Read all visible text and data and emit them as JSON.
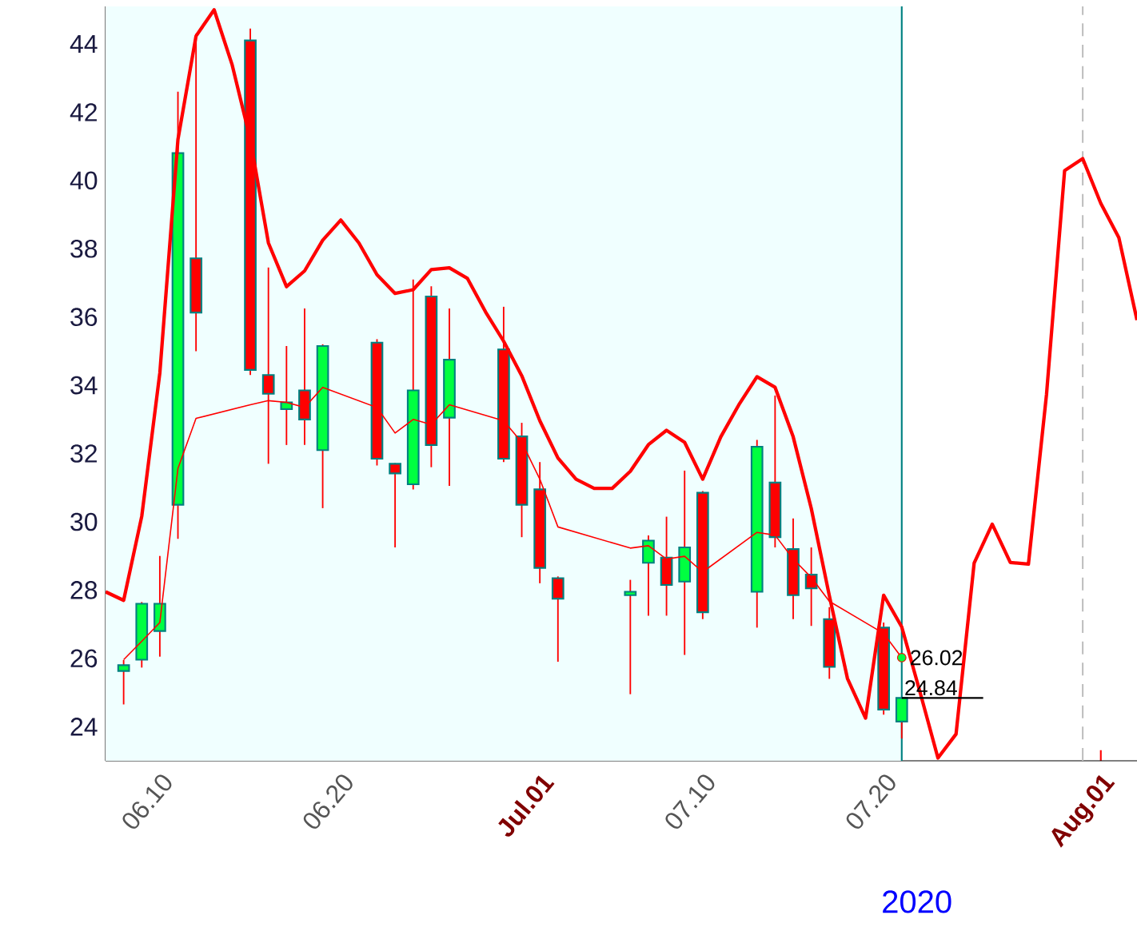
{
  "chart_data": {
    "type": "candlestick",
    "xlim": [
      "2020-06-07",
      "2020-08-03"
    ],
    "xticks": [
      {
        "value": "2020-06-10",
        "label": "06.10"
      },
      {
        "value": "2020-06-20",
        "label": "06.20"
      },
      {
        "value": "2020-07-01",
        "label": "Jul.01"
      },
      {
        "value": "2020-07-10",
        "label": "07.10"
      },
      {
        "value": "2020-07-20",
        "label": "07.20"
      },
      {
        "value": "2020-08-01",
        "label": "Aug.01"
      }
    ],
    "ylim": [
      23,
      45.1
    ],
    "yticks": [
      24,
      26,
      28,
      30,
      32,
      34,
      36,
      38,
      40,
      42,
      44
    ],
    "series": [
      {
        "x": [
          "2020-06-08",
          "2020-06-09",
          "2020-06-10",
          "2020-06-11",
          "2020-06-12",
          "2020-06-15",
          "2020-06-16",
          "2020-06-17",
          "2020-06-18",
          "2020-06-19",
          "2020-06-22",
          "2020-06-23",
          "2020-06-24",
          "2020-06-25",
          "2020-06-26",
          "2020-06-29",
          "2020-06-30",
          "2020-07-01",
          "2020-07-02",
          "2020-07-06",
          "2020-07-07",
          "2020-07-08",
          "2020-07-09",
          "2020-07-10",
          "2020-07-13",
          "2020-07-14",
          "2020-07-15",
          "2020-07-16",
          "2020-07-17",
          "2020-07-20",
          "2020-07-21"
        ],
        "ohlc": [
          [
            25.63,
            25.95,
            24.65,
            25.8
          ],
          [
            25.96,
            27.65,
            25.73,
            27.6
          ],
          [
            26.8,
            29.0,
            26.05,
            27.6
          ],
          [
            30.5,
            42.6,
            29.5,
            40.8
          ],
          [
            37.72,
            44.3,
            35.0,
            36.13
          ],
          [
            44.1,
            44.45,
            34.3,
            34.45
          ],
          [
            34.3,
            37.45,
            31.7,
            33.75
          ],
          [
            33.3,
            35.15,
            32.25,
            33.5
          ],
          [
            33.85,
            36.25,
            32.25,
            33.0
          ],
          [
            32.1,
            35.2,
            30.4,
            35.15
          ],
          [
            35.25,
            35.35,
            31.65,
            31.85
          ],
          [
            31.7,
            31.72,
            29.25,
            31.42
          ],
          [
            31.1,
            37.1,
            30.95,
            33.85
          ],
          [
            36.6,
            36.9,
            31.6,
            32.25
          ],
          [
            33.05,
            36.25,
            31.05,
            34.75
          ],
          [
            35.05,
            36.3,
            31.75,
            31.85
          ],
          [
            32.5,
            32.9,
            29.55,
            30.5
          ],
          [
            30.95,
            31.75,
            28.2,
            28.65
          ],
          [
            28.35,
            28.4,
            25.9,
            27.75
          ],
          [
            27.85,
            28.3,
            24.95,
            27.95
          ],
          [
            28.8,
            29.6,
            27.25,
            29.45
          ],
          [
            28.95,
            30.15,
            27.25,
            28.15
          ],
          [
            28.25,
            31.5,
            26.1,
            29.25
          ],
          [
            30.85,
            30.9,
            27.15,
            27.35
          ],
          [
            27.95,
            32.4,
            26.9,
            32.2
          ],
          [
            31.15,
            33.7,
            29.25,
            29.55
          ],
          [
            29.2,
            30.1,
            27.15,
            27.85
          ],
          [
            28.45,
            29.25,
            26.95,
            28.05
          ],
          [
            27.15,
            27.5,
            25.4,
            25.75
          ],
          [
            26.9,
            27.05,
            24.35,
            24.5
          ],
          [
            24.15,
            24.85,
            23.65,
            24.84
          ]
        ],
        "colors": [
          "#00ff40",
          "#00ff40",
          "#00ff40",
          "#00ff40",
          "#ff0000",
          "#ff0000",
          "#ff0000",
          "#00ff40",
          "#ff0000",
          "#00ff40",
          "#ff0000",
          "#ff0000",
          "#00ff40",
          "#ff0000",
          "#00ff40",
          "#ff0000",
          "#ff0000",
          "#ff0000",
          "#ff0000",
          "#00ff40",
          "#00ff40",
          "#ff0000",
          "#00ff40",
          "#ff0000",
          "#00ff40",
          "#ff0000",
          "#ff0000",
          "#ff0000",
          "#ff0000",
          "#ff0000",
          "#00ff40"
        ]
      },
      {
        "type": "line",
        "color": "#ff0000",
        "x": [
          "2020-06-07",
          "2020-06-08",
          "2020-06-09",
          "2020-06-10",
          "2020-06-11",
          "2020-06-12",
          "2020-06-13",
          "2020-06-14",
          "2020-06-15",
          "2020-06-16",
          "2020-06-17",
          "2020-06-18",
          "2020-06-19",
          "2020-06-20",
          "2020-06-21",
          "2020-06-22",
          "2020-06-23",
          "2020-06-24",
          "2020-06-25",
          "2020-06-26",
          "2020-06-27",
          "2020-06-28",
          "2020-06-29",
          "2020-06-30",
          "2020-07-01",
          "2020-07-02",
          "2020-07-03",
          "2020-07-04",
          "2020-07-05",
          "2020-07-06",
          "2020-07-07",
          "2020-07-08",
          "2020-07-09",
          "2020-07-10",
          "2020-07-11",
          "2020-07-12",
          "2020-07-13",
          "2020-07-14",
          "2020-07-15",
          "2020-07-16",
          "2020-07-17",
          "2020-07-18",
          "2020-07-19",
          "2020-07-20",
          "2020-07-21",
          "2020-07-22",
          "2020-07-23",
          "2020-07-24",
          "2020-07-25",
          "2020-07-26",
          "2020-07-27",
          "2020-07-28",
          "2020-07-29",
          "2020-07-30",
          "2020-07-31",
          "2020-08-01",
          "2020-08-02",
          "2020-08-03"
        ],
        "values": [
          27.95,
          27.7,
          30.16,
          34.36,
          41.2,
          44.23,
          45.0,
          43.38,
          41.2,
          38.17,
          36.89,
          37.35,
          38.25,
          38.84,
          38.17,
          37.24,
          36.69,
          36.8,
          37.39,
          37.44,
          37.13,
          36.15,
          35.29,
          34.28,
          32.96,
          31.87,
          31.25,
          30.98,
          30.98,
          31.48,
          32.26,
          32.68,
          32.33,
          31.25,
          32.49,
          33.43,
          34.25,
          33.94,
          32.49,
          30.39,
          27.83,
          25.41,
          24.25,
          27.85,
          26.92,
          25.03,
          23.08,
          23.78,
          28.79,
          29.93,
          28.81,
          28.76,
          33.73,
          40.29,
          40.64,
          39.33,
          38.32,
          35.91
        ]
      },
      {
        "type": "line",
        "color": "#ff0000",
        "x": [
          "2020-06-08",
          "2020-06-09",
          "2020-06-10",
          "2020-06-11",
          "2020-06-12",
          "2020-06-15",
          "2020-06-16",
          "2020-06-17",
          "2020-06-18",
          "2020-06-19",
          "2020-06-22",
          "2020-06-23",
          "2020-06-24",
          "2020-06-25",
          "2020-06-26",
          "2020-06-29",
          "2020-06-30",
          "2020-07-01",
          "2020-07-02",
          "2020-07-06",
          "2020-07-07",
          "2020-07-08",
          "2020-07-09",
          "2020-07-10",
          "2020-07-13",
          "2020-07-14",
          "2020-07-15",
          "2020-07-16",
          "2020-07-17",
          "2020-07-20",
          "2020-07-21"
        ],
        "values": [
          25.96,
          26.5,
          27.05,
          31.56,
          33.03,
          33.43,
          33.55,
          33.5,
          33.35,
          33.94,
          33.35,
          32.6,
          33.0,
          32.85,
          33.43,
          32.96,
          32.33,
          31.25,
          29.85,
          29.23,
          29.3,
          28.91,
          28.99,
          28.53,
          29.69,
          29.61,
          28.91,
          28.37,
          27.67,
          26.73,
          26.02
        ]
      }
    ],
    "ref_lines": [
      {
        "axis": "x",
        "value": "2020-07-21",
        "color": "#008080"
      },
      {
        "axis": "x",
        "value": "2020-07-31",
        "color": "#c0c0c0",
        "line_style": "dashed"
      }
    ],
    "bands": [
      {
        "axis": "x",
        "from": "2020-06-07",
        "to": "2020-07-21",
        "color": "#f0ffff"
      }
    ],
    "annotations": [
      {
        "text": "26.02",
        "x": "2020-07-21",
        "y": 26.02
      },
      {
        "text": "24.84",
        "x": "2020-07-21",
        "y": 24.84
      },
      "2020"
    ]
  }
}
